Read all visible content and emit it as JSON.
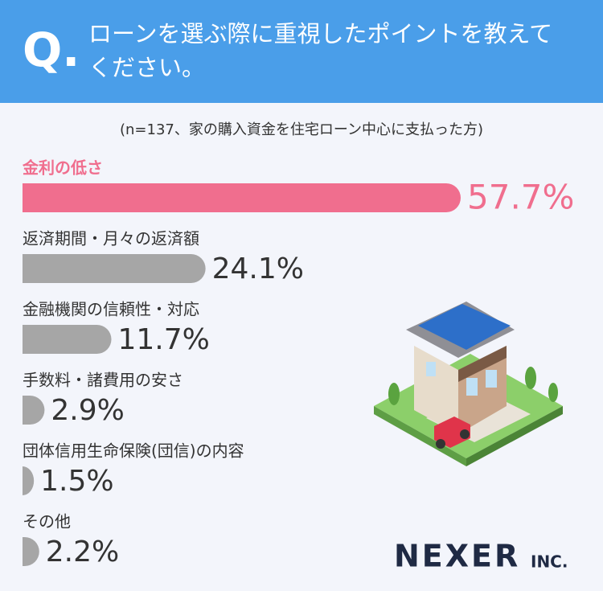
{
  "header": {
    "mark": "Q.",
    "question_lines": [
      "ローンを選ぶ際に重視したポイントを教えて",
      "ください。"
    ]
  },
  "chart_data": {
    "type": "bar",
    "orientation": "horizontal",
    "subtitle": "(n=137、家の購入資金を住宅ローン中心に支払った方)",
    "categories": [
      "金利の低さ",
      "返済期間・月々の返済額",
      "金融機関の信頼性・対応",
      "手数料・諸費用の安さ",
      "団体信用生命保険(団信)の内容",
      "その他"
    ],
    "values": [
      57.7,
      24.1,
      11.7,
      2.9,
      1.5,
      2.2
    ],
    "value_labels": [
      "57.7%",
      "24.1%",
      "11.7%",
      "2.9%",
      "1.5%",
      "2.2%"
    ],
    "colors": [
      "#f06e8e",
      "#a6a6a6",
      "#a6a6a6",
      "#a6a6a6",
      "#a6a6a6",
      "#a6a6a6"
    ],
    "label_colors": [
      "#f06e8e",
      "#333333",
      "#333333",
      "#333333",
      "#333333",
      "#333333"
    ]
  },
  "footer": {
    "logo": "NEXER",
    "logo_suffix": "INC."
  }
}
